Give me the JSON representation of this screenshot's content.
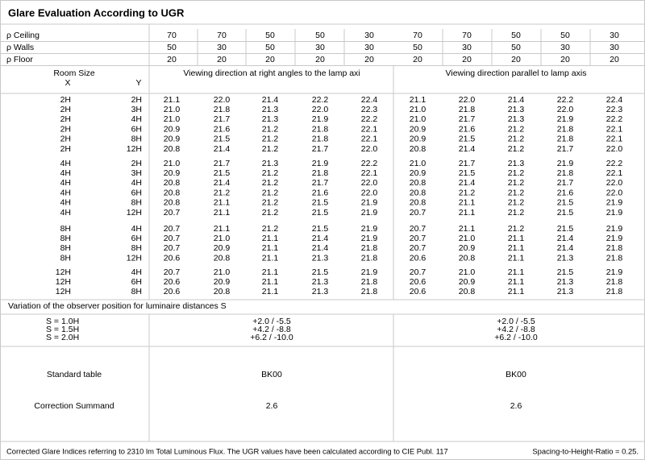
{
  "header": {
    "title": "Glare Evaluation According to UGR"
  },
  "reflectances": [
    {
      "label": "ρ Ceiling",
      "values": [
        "70",
        "70",
        "50",
        "50",
        "30",
        "70",
        "70",
        "50",
        "50",
        "30"
      ]
    },
    {
      "label": "ρ Walls",
      "values": [
        "50",
        "30",
        "50",
        "30",
        "30",
        "50",
        "30",
        "50",
        "30",
        "30"
      ]
    },
    {
      "label": "ρ Floor",
      "values": [
        "20",
        "20",
        "20",
        "20",
        "20",
        "20",
        "20",
        "20",
        "20",
        "20"
      ]
    }
  ],
  "table_header": {
    "room_size": "Room Size",
    "x": "X",
    "y": "Y",
    "right_angles": "Viewing direction at right angles to the lamp axi",
    "parallel": "Viewing direction parallel to lamp axis"
  },
  "groups": [
    {
      "rows": [
        {
          "x": "2H",
          "y": "2H",
          "right_angles": [
            "21.1",
            "22.0",
            "21.4",
            "22.2",
            "22.4"
          ],
          "parallel": [
            "21.1",
            "22.0",
            "21.4",
            "22.2",
            "22.4"
          ]
        },
        {
          "x": "2H",
          "y": "3H",
          "right_angles": [
            "21.0",
            "21.8",
            "21.3",
            "22.0",
            "22.3"
          ],
          "parallel": [
            "21.0",
            "21.8",
            "21.3",
            "22.0",
            "22.3"
          ]
        },
        {
          "x": "2H",
          "y": "4H",
          "right_angles": [
            "21.0",
            "21.7",
            "21.3",
            "21.9",
            "22.2"
          ],
          "parallel": [
            "21.0",
            "21.7",
            "21.3",
            "21.9",
            "22.2"
          ]
        },
        {
          "x": "2H",
          "y": "6H",
          "right_angles": [
            "20.9",
            "21.6",
            "21.2",
            "21.8",
            "22.1"
          ],
          "parallel": [
            "20.9",
            "21.6",
            "21.2",
            "21.8",
            "22.1"
          ]
        },
        {
          "x": "2H",
          "y": "8H",
          "right_angles": [
            "20.9",
            "21.5",
            "21.2",
            "21.8",
            "22.1"
          ],
          "parallel": [
            "20.9",
            "21.5",
            "21.2",
            "21.8",
            "22.1"
          ]
        },
        {
          "x": "2H",
          "y": "12H",
          "right_angles": [
            "20.8",
            "21.4",
            "21.2",
            "21.7",
            "22.0"
          ],
          "parallel": [
            "20.8",
            "21.4",
            "21.2",
            "21.7",
            "22.0"
          ]
        }
      ]
    },
    {
      "rows": [
        {
          "x": "4H",
          "y": "2H",
          "right_angles": [
            "21.0",
            "21.7",
            "21.3",
            "21.9",
            "22.2"
          ],
          "parallel": [
            "21.0",
            "21.7",
            "21.3",
            "21.9",
            "22.2"
          ]
        },
        {
          "x": "4H",
          "y": "3H",
          "right_angles": [
            "20.9",
            "21.5",
            "21.2",
            "21.8",
            "22.1"
          ],
          "parallel": [
            "20.9",
            "21.5",
            "21.2",
            "21.8",
            "22.1"
          ]
        },
        {
          "x": "4H",
          "y": "4H",
          "right_angles": [
            "20.8",
            "21.4",
            "21.2",
            "21.7",
            "22.0"
          ],
          "parallel": [
            "20.8",
            "21.4",
            "21.2",
            "21.7",
            "22.0"
          ]
        },
        {
          "x": "4H",
          "y": "6H",
          "right_angles": [
            "20.8",
            "21.2",
            "21.2",
            "21.6",
            "22.0"
          ],
          "parallel": [
            "20.8",
            "21.2",
            "21.2",
            "21.6",
            "22.0"
          ]
        },
        {
          "x": "4H",
          "y": "8H",
          "right_angles": [
            "20.8",
            "21.1",
            "21.2",
            "21.5",
            "21.9"
          ],
          "parallel": [
            "20.8",
            "21.1",
            "21.2",
            "21.5",
            "21.9"
          ]
        },
        {
          "x": "4H",
          "y": "12H",
          "right_angles": [
            "20.7",
            "21.1",
            "21.2",
            "21.5",
            "21.9"
          ],
          "parallel": [
            "20.7",
            "21.1",
            "21.2",
            "21.5",
            "21.9"
          ]
        }
      ]
    },
    {
      "rows": [
        {
          "x": "8H",
          "y": "4H",
          "right_angles": [
            "20.7",
            "21.1",
            "21.2",
            "21.5",
            "21.9"
          ],
          "parallel": [
            "20.7",
            "21.1",
            "21.2",
            "21.5",
            "21.9"
          ]
        },
        {
          "x": "8H",
          "y": "6H",
          "right_angles": [
            "20.7",
            "21.0",
            "21.1",
            "21.4",
            "21.9"
          ],
          "parallel": [
            "20.7",
            "21.0",
            "21.1",
            "21.4",
            "21.9"
          ]
        },
        {
          "x": "8H",
          "y": "8H",
          "right_angles": [
            "20.7",
            "20.9",
            "21.1",
            "21.4",
            "21.8"
          ],
          "parallel": [
            "20.7",
            "20.9",
            "21.1",
            "21.4",
            "21.8"
          ]
        },
        {
          "x": "8H",
          "y": "12H",
          "right_angles": [
            "20.6",
            "20.8",
            "21.1",
            "21.3",
            "21.8"
          ],
          "parallel": [
            "20.6",
            "20.8",
            "21.1",
            "21.3",
            "21.8"
          ]
        }
      ]
    },
    {
      "rows": [
        {
          "x": "12H",
          "y": "4H",
          "right_angles": [
            "20.7",
            "21.0",
            "21.1",
            "21.5",
            "21.9"
          ],
          "parallel": [
            "20.7",
            "21.0",
            "21.1",
            "21.5",
            "21.9"
          ]
        },
        {
          "x": "12H",
          "y": "6H",
          "right_angles": [
            "20.6",
            "20.9",
            "21.1",
            "21.3",
            "21.8"
          ],
          "parallel": [
            "20.6",
            "20.9",
            "21.1",
            "21.3",
            "21.8"
          ]
        },
        {
          "x": "12H",
          "y": "8H",
          "right_angles": [
            "20.6",
            "20.8",
            "21.1",
            "21.3",
            "21.8"
          ],
          "parallel": [
            "20.6",
            "20.8",
            "21.1",
            "21.3",
            "21.8"
          ]
        }
      ]
    }
  ],
  "variation": {
    "label": "Variation of the observer position for luminaire distances S",
    "spacings": [
      "S = 1.0H",
      "S = 1.5H",
      "S = 2.0H"
    ],
    "right_angles": [
      "+2.0 / -5.5",
      "+4.2 / -8.8",
      "+6.2 / -10.0"
    ],
    "parallel": [
      "+2.0 / -5.5",
      "+4.2 / -8.8",
      "+6.2 / -10.0"
    ]
  },
  "standard_table": {
    "label": "Standard table",
    "right_angles": "BK00",
    "parallel": "BK00"
  },
  "correction_summand": {
    "label": "Correction Summand",
    "right_angles": "2.6",
    "parallel": "2.6"
  },
  "footer": {
    "note": "Corrected Glare Indices referring to 2310 lm Total Luminous Flux. The UGR values have been calculated according to CIE Publ. 117",
    "ratio": "Spacing-to-Height-Ratio = 0.25."
  }
}
